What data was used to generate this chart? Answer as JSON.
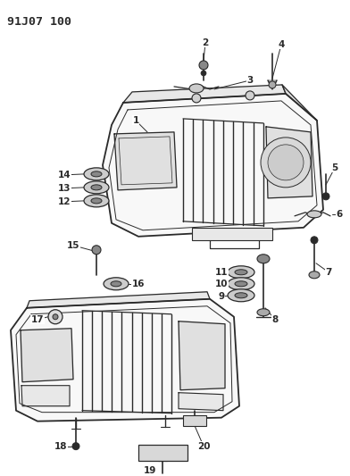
{
  "title": "91J07 100",
  "bg_color": "#ffffff",
  "line_color": "#2a2a2a",
  "line_width": 1.0,
  "figsize": [
    3.92,
    5.33
  ],
  "dpi": 100
}
